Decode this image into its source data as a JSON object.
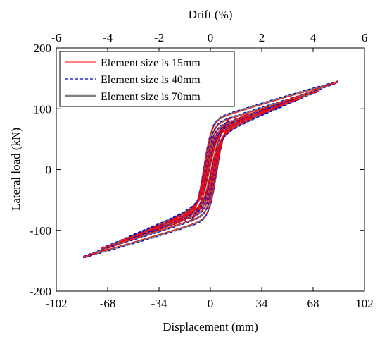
{
  "chart_data": {
    "type": "line",
    "title": "",
    "xlabel": "Displacement (mm)",
    "ylabel": "Lateral load (kN)",
    "x2label": "Drift (%)",
    "xlim": [
      -102,
      102
    ],
    "ylim": [
      -200,
      200
    ],
    "x2lim": [
      -6,
      6
    ],
    "xticks": [
      "-102",
      "-68",
      "-34",
      "0",
      "34",
      "68",
      "102"
    ],
    "yticks": [
      "200",
      "100",
      "0",
      "-100",
      "-200"
    ],
    "x2ticks": [
      "-6",
      "-4",
      "-2",
      "0",
      "2",
      "4",
      "6"
    ],
    "grid": false,
    "legend_position": "top-left",
    "loops": [
      {
        "amp": 12,
        "peak": 82
      },
      {
        "amp": 24,
        "peak": 90
      },
      {
        "amp": 36,
        "peak": 98
      },
      {
        "amp": 48,
        "peak": 108
      },
      {
        "amp": 60,
        "peak": 118
      },
      {
        "amp": 72,
        "peak": 130
      },
      {
        "amp": 84,
        "peak": 144
      }
    ],
    "series": [
      {
        "name": "Element size is 15mm",
        "color": "#ff0000",
        "style": "solid"
      },
      {
        "name": "Element size is 40mm",
        "color": "#0000cc",
        "style": "dashed"
      },
      {
        "name": "Element size is 70mm",
        "color": "#7f7f7f",
        "style": "solid-thick"
      }
    ]
  }
}
